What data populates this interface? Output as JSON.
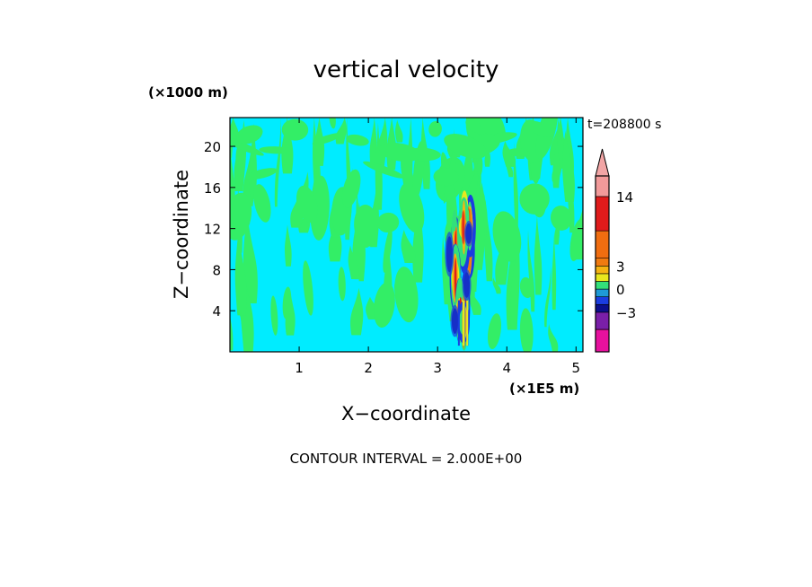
{
  "chart_data": {
    "type": "heatmap",
    "title": "vertical velocity",
    "time_label": "t=208800 s",
    "xlabel": "X−coordinate",
    "ylabel": "Z−coordinate",
    "x_unit": "(×1E5 m)",
    "y_unit": "(×1000 m)",
    "xlim": [
      0,
      5.1
    ],
    "ylim": [
      0,
      22.8
    ],
    "x_ticks": [
      1,
      2,
      3,
      4,
      5
    ],
    "y_ticks": [
      4,
      8,
      12,
      16,
      20
    ],
    "x_tick_labels": [
      "1",
      "2",
      "3",
      "4",
      "5"
    ],
    "y_tick_labels": [
      "4",
      "8",
      "12",
      "16",
      "20"
    ],
    "contour_interval": 2.0,
    "footer": "CONTOUR INTERVAL = 2.000E+00",
    "colorbar": {
      "labels": [
        "14",
        "3",
        "0",
        "−3"
      ],
      "label_values": [
        14,
        3,
        0,
        -3
      ],
      "levels": [
        {
          "lower": -9,
          "upper": -7,
          "color": "#e7119e"
        },
        {
          "lower": -7,
          "upper": -5,
          "color": "#ffffff"
        },
        {
          "lower": -5,
          "upper": -3,
          "color": "#7a1fa8"
        },
        {
          "lower": -3,
          "upper": -2,
          "color": "#0b0f8c"
        },
        {
          "lower": -2,
          "upper": -1,
          "color": "#1b3de0"
        },
        {
          "lower": -1,
          "upper": 0,
          "color": "#1e9ad6"
        },
        {
          "lower": 0,
          "upper": 1,
          "color": "#33e07a"
        },
        {
          "lower": 1,
          "upper": 2,
          "color": "#e8e81e"
        },
        {
          "lower": 2,
          "upper": 3,
          "color": "#f5b312"
        },
        {
          "lower": 3,
          "upper": 4,
          "color": "#f07a10"
        },
        {
          "lower": 4,
          "upper": 9,
          "color": "#f06d10"
        },
        {
          "lower": 9,
          "upper": 14,
          "color": "#e01b1b"
        },
        {
          "lower": 14,
          "upper": 18,
          "color": "#f29a9a"
        }
      ],
      "extend_max_color": "#f2a5a5"
    },
    "field": {
      "background_color": "#00ecff",
      "background_range": [
        -1,
        1
      ],
      "updraft_color": "#33ee66",
      "updraft_range": [
        1,
        3
      ],
      "convective_core_x_range": [
        3.2,
        3.5
      ],
      "convective_core_z_range": [
        0.5,
        15.5
      ],
      "convective_core_max": 14,
      "convective_core_min": -5
    }
  }
}
